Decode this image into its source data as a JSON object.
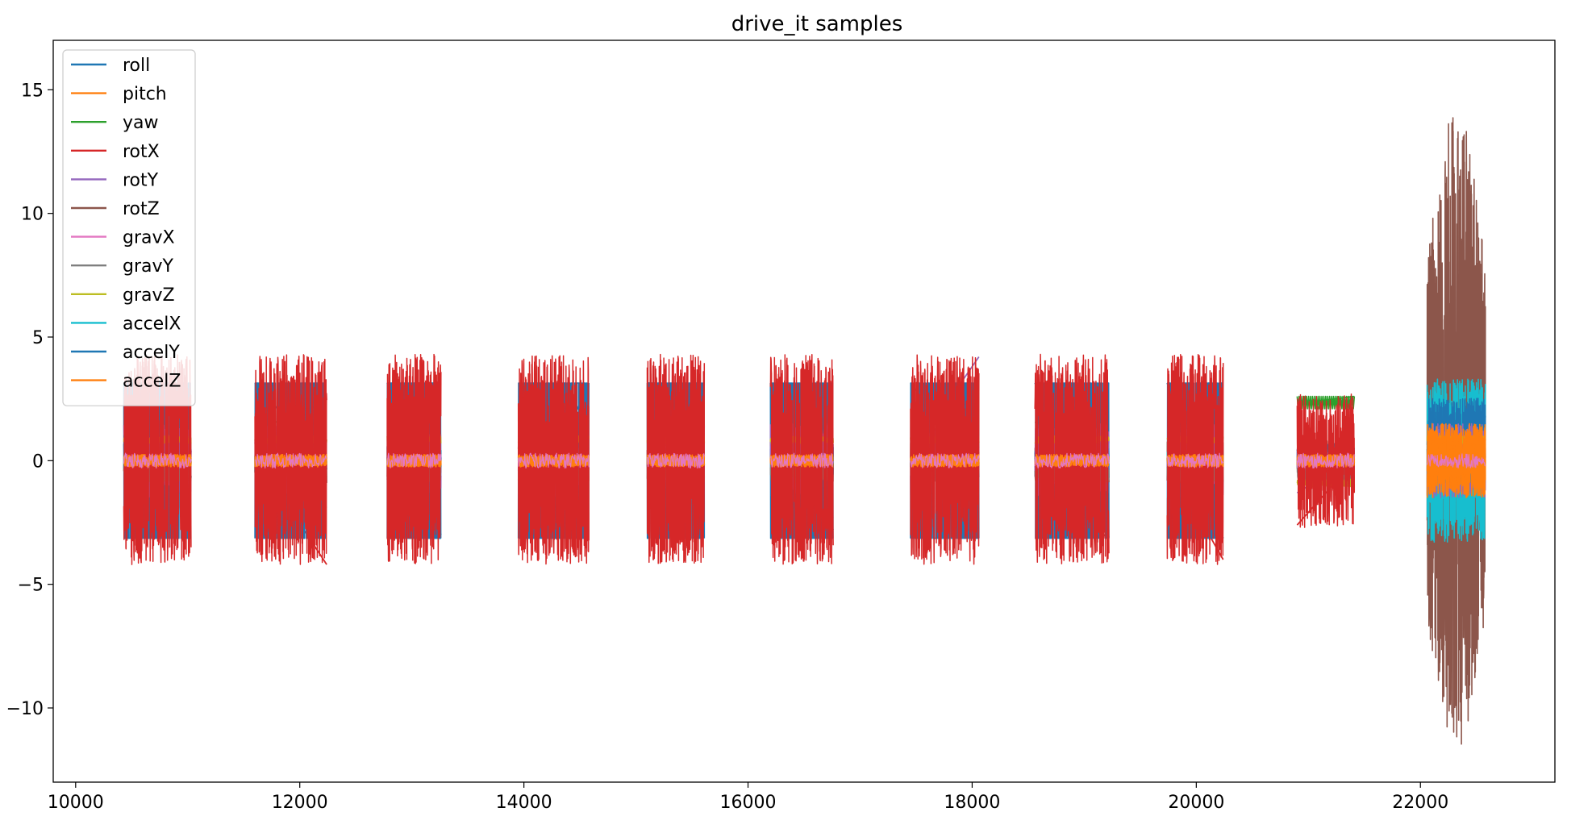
{
  "chart_data": {
    "type": "line",
    "title": "drive_it samples",
    "xlabel": "",
    "ylabel": "",
    "xlim": [
      9800,
      23200
    ],
    "ylim": [
      -13,
      17
    ],
    "xticks": [
      10000,
      12000,
      14000,
      16000,
      18000,
      20000,
      22000
    ],
    "yticks": [
      -10,
      -5,
      0,
      5,
      10,
      15
    ],
    "ytick_labels": [
      "−10",
      "−5",
      "0",
      "5",
      "10",
      "15"
    ],
    "grid": false,
    "legend_position": "upper-left",
    "colors": {
      "roll": "#1f77b4",
      "pitch": "#ff7f0e",
      "yaw": "#2ca02c",
      "rotX": "#d62728",
      "rotY": "#9467bd",
      "rotZ": "#8c564b",
      "gravX": "#e377c2",
      "gravY": "#7f7f7f",
      "gravZ": "#bcbd22",
      "accelX": "#17becf",
      "accelY": "#1f77b4",
      "accelZ": "#ff7f0e"
    },
    "series_names": [
      "roll",
      "pitch",
      "yaw",
      "rotX",
      "rotY",
      "rotZ",
      "gravX",
      "gravY",
      "gravZ",
      "accelX",
      "accelY",
      "accelZ"
    ],
    "sessions": [
      {
        "start": 10430,
        "end": 11030
      },
      {
        "start": 11600,
        "end": 12240
      },
      {
        "start": 12780,
        "end": 13260
      },
      {
        "start": 13950,
        "end": 14580
      },
      {
        "start": 15100,
        "end": 15610
      },
      {
        "start": 16200,
        "end": 16760
      },
      {
        "start": 17450,
        "end": 18060
      },
      {
        "start": 18560,
        "end": 19220
      },
      {
        "start": 19740,
        "end": 20240
      },
      {
        "start": 20900,
        "end": 21410
      },
      {
        "start": 22060,
        "end": 22580
      }
    ],
    "series_summary": {
      "roll": {
        "typical_range": [
          -3.14,
          3.14
        ],
        "behavior": "square wave between -3.14 and 3.14 within sessions"
      },
      "pitch": {
        "typical_range": [
          -0.5,
          1.0
        ]
      },
      "yaw": {
        "typical_range": [
          1.3,
          2.6
        ],
        "behavior": "connecting line between sessions near 1.4"
      },
      "rotX": {
        "typical_range": [
          -4.5,
          4.5
        ]
      },
      "rotY": {
        "typical_range": [
          -1.5,
          4.2
        ]
      },
      "rotZ": {
        "typical_range": [
          -11.7,
          15.6
        ],
        "behavior": "large oscillation in final session"
      },
      "gravX": {
        "typical_range": [
          -0.5,
          0.5
        ]
      },
      "gravY": {
        "typical_range": [
          -1.0,
          0.0
        ]
      },
      "gravZ": {
        "typical_range": [
          0.0,
          1.0
        ]
      },
      "accelX": {
        "typical_range": [
          -4.3,
          3.5
        ],
        "behavior": "large oscillation in final session"
      },
      "accelY": {
        "typical_range": [
          -0.5,
          2.5
        ]
      },
      "accelZ": {
        "typical_range": [
          -1.5,
          1.5
        ]
      }
    }
  }
}
